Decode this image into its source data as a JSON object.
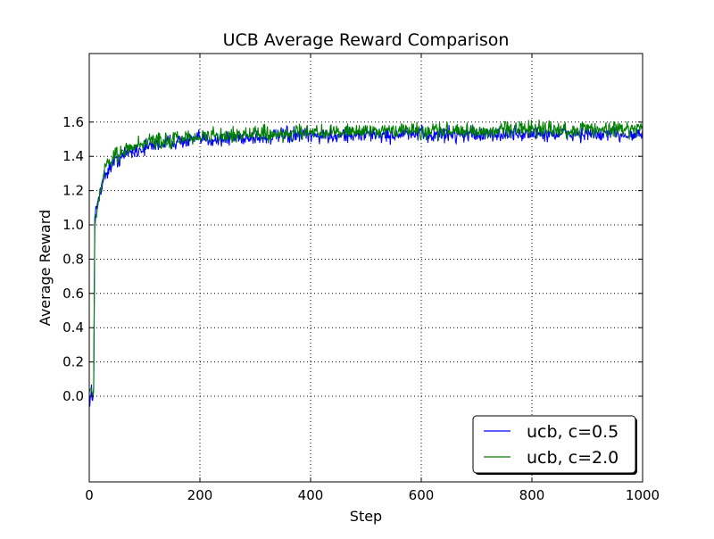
{
  "chart_data": {
    "type": "line",
    "title": "UCB Average Reward Comparison",
    "xlabel": "Step",
    "ylabel": "Average Reward",
    "xlim": [
      0,
      1000
    ],
    "ylim": [
      -0.5,
      2.0
    ],
    "xticks": [
      0,
      200,
      400,
      600,
      800,
      1000
    ],
    "yticks": [
      0.0,
      0.2,
      0.4,
      0.6,
      0.8,
      1.0,
      1.2,
      1.4,
      1.6
    ],
    "ytick_labels": [
      "0.0",
      "0.2",
      "0.4",
      "0.6",
      "0.8",
      "1.0",
      "1.2",
      "1.4",
      "1.6"
    ],
    "xtick_labels": [
      "0",
      "200",
      "400",
      "600",
      "800",
      "1000"
    ],
    "grid": true,
    "grid_style": "dotted",
    "legend_position": "lower-right",
    "x": [
      0,
      2,
      4,
      6,
      8,
      10,
      12,
      15,
      20,
      25,
      30,
      40,
      50,
      60,
      70,
      80,
      90,
      100,
      120,
      140,
      160,
      180,
      200,
      220,
      240,
      260,
      280,
      300,
      320,
      340,
      360,
      380,
      400,
      420,
      440,
      460,
      480,
      500,
      520,
      540,
      560,
      580,
      600,
      620,
      640,
      660,
      680,
      700,
      720,
      740,
      760,
      780,
      800,
      820,
      840,
      860,
      880,
      900,
      920,
      940,
      960,
      980,
      1000
    ],
    "series": [
      {
        "name": "ucb, c=0.5",
        "color": "#0000ff",
        "values": [
          0.0,
          -0.03,
          0.05,
          -0.02,
          0.03,
          1.02,
          1.08,
          1.13,
          1.2,
          1.26,
          1.3,
          1.35,
          1.38,
          1.4,
          1.42,
          1.43,
          1.44,
          1.45,
          1.47,
          1.48,
          1.49,
          1.49,
          1.5,
          1.5,
          1.5,
          1.51,
          1.51,
          1.51,
          1.51,
          1.52,
          1.52,
          1.52,
          1.52,
          1.52,
          1.52,
          1.53,
          1.52,
          1.53,
          1.53,
          1.52,
          1.53,
          1.53,
          1.53,
          1.52,
          1.53,
          1.53,
          1.53,
          1.53,
          1.52,
          1.53,
          1.53,
          1.53,
          1.53,
          1.53,
          1.53,
          1.53,
          1.53,
          1.53,
          1.52,
          1.53,
          1.53,
          1.53,
          1.53
        ]
      },
      {
        "name": "ucb, c=2.0",
        "color": "#008000",
        "values": [
          0.05,
          0.02,
          0.06,
          0.0,
          0.04,
          1.0,
          1.06,
          1.12,
          1.21,
          1.28,
          1.33,
          1.38,
          1.41,
          1.43,
          1.45,
          1.46,
          1.47,
          1.48,
          1.49,
          1.5,
          1.5,
          1.51,
          1.51,
          1.52,
          1.52,
          1.52,
          1.53,
          1.53,
          1.53,
          1.53,
          1.53,
          1.54,
          1.54,
          1.54,
          1.54,
          1.54,
          1.54,
          1.55,
          1.54,
          1.55,
          1.55,
          1.55,
          1.55,
          1.55,
          1.55,
          1.55,
          1.55,
          1.55,
          1.55,
          1.56,
          1.56,
          1.56,
          1.56,
          1.56,
          1.56,
          1.55,
          1.56,
          1.56,
          1.56,
          1.56,
          1.56,
          1.56,
          1.56
        ]
      }
    ]
  }
}
